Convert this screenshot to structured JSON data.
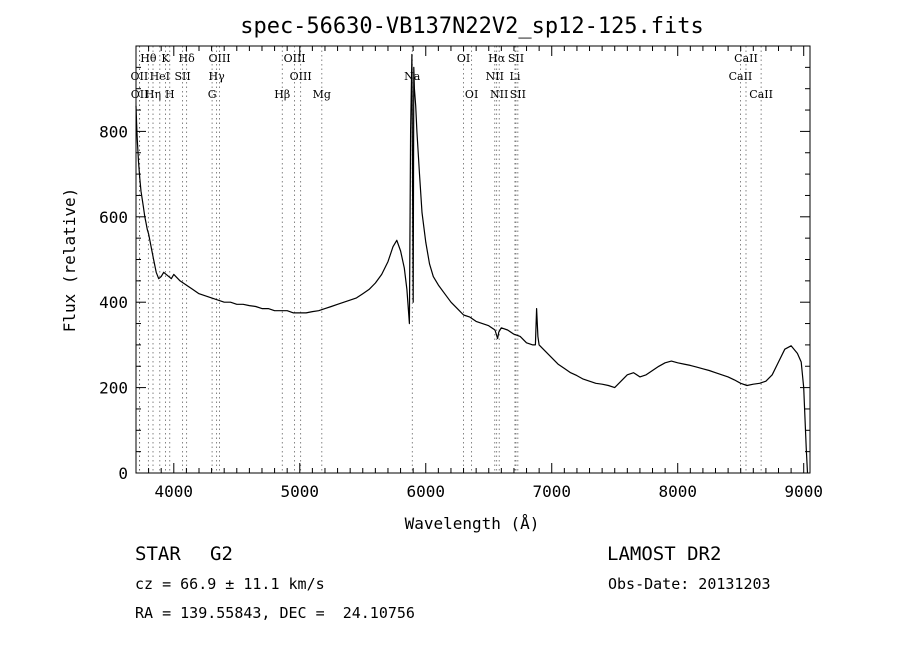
{
  "chart_data": {
    "type": "line",
    "title": "spec-56630-VB137N22V2_sp12-125.fits",
    "xlabel": "Wavelength (Å)",
    "ylabel": "Flux (relative)",
    "xlim": [
      3700,
      9050
    ],
    "ylim": [
      0,
      1000
    ],
    "xticks": [
      4000,
      5000,
      6000,
      7000,
      8000,
      9000
    ],
    "yticks": [
      0,
      200,
      400,
      600,
      800
    ],
    "grid": false,
    "series": [
      {
        "x": [
          3700,
          3705,
          3710,
          3720,
          3730,
          3740,
          3750,
          3760,
          3770,
          3780,
          3790,
          3800,
          3820,
          3840,
          3860,
          3880,
          3900,
          3920,
          3940,
          3960,
          3980,
          4000,
          4050,
          4100,
          4150,
          4200,
          4250,
          4300,
          4350,
          4400,
          4450,
          4500,
          4550,
          4600,
          4650,
          4700,
          4750,
          4800,
          4850,
          4900,
          4950,
          5000,
          5050,
          5100,
          5150,
          5200,
          5250,
          5300,
          5350,
          5400,
          5450,
          5500,
          5550,
          5600,
          5650,
          5700,
          5740,
          5770,
          5800,
          5830,
          5850,
          5870,
          5880,
          5890,
          5895,
          5900,
          5905,
          5910,
          5920,
          5930,
          5950,
          5970,
          6000,
          6030,
          6060,
          6100,
          6150,
          6200,
          6250,
          6300,
          6350,
          6400,
          6450,
          6500,
          6550,
          6570,
          6580,
          6600,
          6650,
          6700,
          6750,
          6800,
          6850,
          6870,
          6880,
          6890,
          6900,
          6950,
          7000,
          7050,
          7100,
          7150,
          7200,
          7250,
          7300,
          7350,
          7400,
          7450,
          7500,
          7550,
          7600,
          7650,
          7700,
          7750,
          7800,
          7850,
          7900,
          7950,
          8000,
          8050,
          8100,
          8150,
          8200,
          8250,
          8300,
          8350,
          8400,
          8450,
          8500,
          8550,
          8600,
          8650,
          8700,
          8750,
          8800,
          8850,
          8900,
          8950,
          8980,
          9000,
          9020,
          9030
        ],
        "y": [
          860,
          820,
          780,
          730,
          690,
          660,
          640,
          620,
          600,
          585,
          570,
          560,
          530,
          500,
          470,
          455,
          460,
          470,
          465,
          460,
          455,
          465,
          450,
          440,
          430,
          420,
          415,
          410,
          405,
          400,
          400,
          395,
          395,
          392,
          390,
          385,
          385,
          380,
          380,
          380,
          375,
          375,
          375,
          378,
          380,
          385,
          390,
          395,
          400,
          405,
          410,
          420,
          430,
          445,
          465,
          495,
          530,
          545,
          520,
          480,
          430,
          350,
          800,
          980,
          700,
          400,
          950,
          900,
          860,
          800,
          700,
          610,
          540,
          490,
          460,
          440,
          420,
          400,
          385,
          370,
          365,
          355,
          350,
          345,
          335,
          315,
          330,
          340,
          335,
          325,
          320,
          305,
          300,
          300,
          385,
          320,
          300,
          285,
          270,
          255,
          245,
          235,
          228,
          220,
          215,
          210,
          208,
          205,
          200,
          215,
          230,
          235,
          225,
          230,
          240,
          250,
          258,
          262,
          258,
          255,
          252,
          248,
          244,
          240,
          235,
          230,
          225,
          218,
          210,
          205,
          208,
          210,
          215,
          230,
          260,
          290,
          298,
          280,
          260,
          200,
          60,
          0
        ]
      }
    ],
    "lines": [
      {
        "label": "Hθ",
        "wave": 3798,
        "row": 0
      },
      {
        "label": "K",
        "wave": 3934,
        "row": 0
      },
      {
        "label": "Hδ",
        "wave": 4102,
        "row": 0
      },
      {
        "label": "OIII",
        "wave": 4363,
        "row": 0
      },
      {
        "label": "OIII",
        "wave": 4959,
        "row": 0
      },
      {
        "label": "OI",
        "wave": 6300,
        "row": 0
      },
      {
        "label": "Hα",
        "wave": 6563,
        "row": 0
      },
      {
        "label": "SII",
        "wave": 6716,
        "row": 0
      },
      {
        "label": "CaII",
        "wave": 8542,
        "row": 0
      },
      {
        "label": "OII",
        "wave": 3727,
        "row": 1
      },
      {
        "label": "HeI",
        "wave": 3889,
        "row": 1
      },
      {
        "label": "SII",
        "wave": 4070,
        "row": 1
      },
      {
        "label": "Hγ",
        "wave": 4340,
        "row": 1
      },
      {
        "label": "OIII",
        "wave": 5007,
        "row": 1
      },
      {
        "label": "Na",
        "wave": 5893,
        "row": 1
      },
      {
        "label": "NII",
        "wave": 6548,
        "row": 1
      },
      {
        "label": "Li",
        "wave": 6708,
        "row": 1
      },
      {
        "label": "CaII",
        "wave": 8498,
        "row": 1
      },
      {
        "label": "OII",
        "wave": 3729,
        "row": 2
      },
      {
        "label": "Hη",
        "wave": 3835,
        "row": 2
      },
      {
        "label": "H",
        "wave": 3968,
        "row": 2
      },
      {
        "label": "G",
        "wave": 4304,
        "row": 2
      },
      {
        "label": "Hβ",
        "wave": 4861,
        "row": 2
      },
      {
        "label": "Mg",
        "wave": 5175,
        "row": 2
      },
      {
        "label": "OI",
        "wave": 6364,
        "row": 2
      },
      {
        "label": "NII",
        "wave": 6583,
        "row": 2
      },
      {
        "label": "SII",
        "wave": 6731,
        "row": 2
      },
      {
        "label": "CaII",
        "wave": 8662,
        "row": 2
      }
    ]
  },
  "info": {
    "class_label": "STAR",
    "subclass": "G2",
    "survey": "LAMOST DR2",
    "cz": "cz = 66.9 ± 11.1 km/s",
    "obs_date": "Obs-Date: 20131203",
    "radec": "RA = 139.55843, DEC =  24.10756"
  }
}
